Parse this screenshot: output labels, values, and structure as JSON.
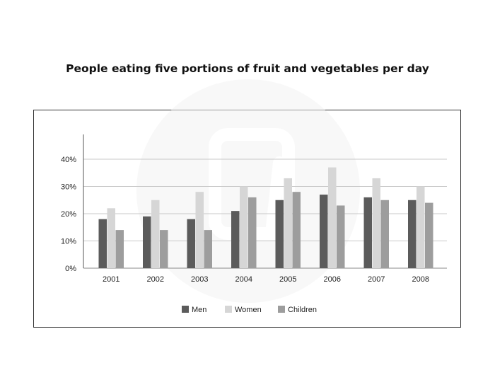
{
  "chart_data": {
    "type": "bar",
    "title": "People eating five portions of fruit and vegetables per day",
    "xlabel": "",
    "ylabel": "",
    "categories": [
      "2001",
      "2002",
      "2003",
      "2004",
      "2005",
      "2006",
      "2007",
      "2008"
    ],
    "yticks": [
      "0%",
      "10%",
      "20%",
      "30%",
      "40%"
    ],
    "ylim": [
      0,
      40
    ],
    "grid": true,
    "legend_position": "bottom",
    "series": [
      {
        "name": "Men",
        "color": "#5b5b5b",
        "values": [
          18,
          19,
          18,
          21,
          25,
          27,
          26,
          25
        ]
      },
      {
        "name": "Women",
        "color": "#d6d6d6",
        "values": [
          22,
          25,
          28,
          30,
          33,
          37,
          33,
          30
        ]
      },
      {
        "name": "Children",
        "color": "#9d9d9d",
        "values": [
          14,
          14,
          14,
          26,
          28,
          23,
          25,
          24
        ]
      }
    ]
  }
}
